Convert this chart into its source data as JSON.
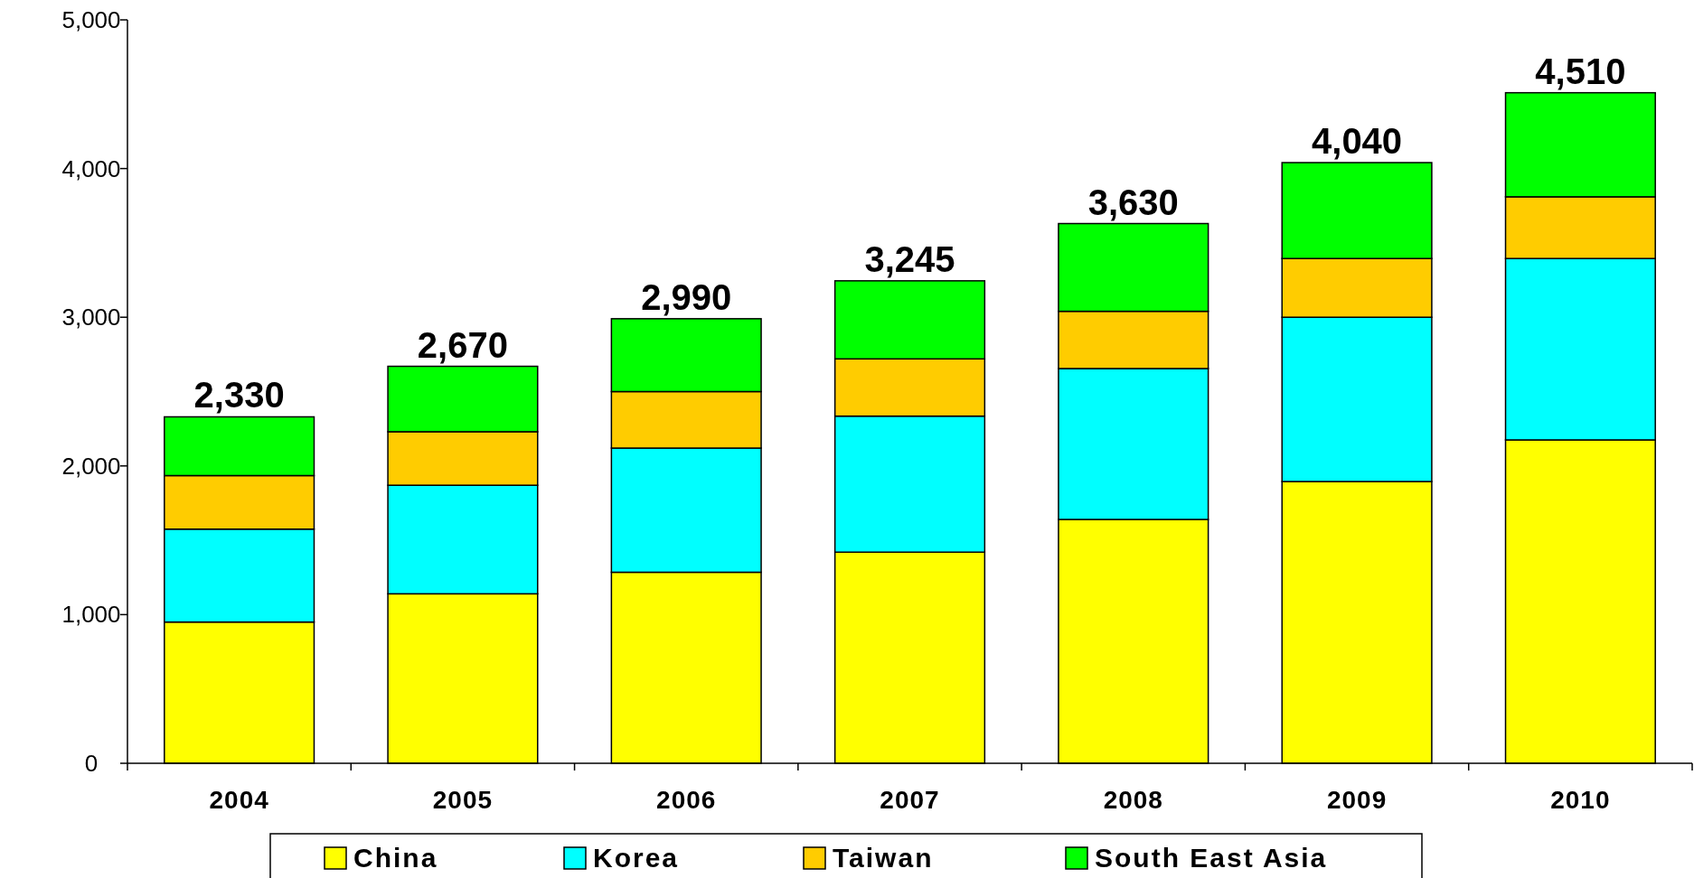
{
  "chart_data": {
    "type": "bar",
    "stacked": true,
    "categories": [
      "2004",
      "2005",
      "2006",
      "2007",
      "2008",
      "2009",
      "2010"
    ],
    "series": [
      {
        "name": "China",
        "color": "#ffff00",
        "values": [
          950,
          1140,
          1285,
          1420,
          1640,
          1895,
          2175
        ]
      },
      {
        "name": "Korea",
        "color": "#00ffff",
        "values": [
          625,
          730,
          835,
          915,
          1015,
          1105,
          1220
        ]
      },
      {
        "name": "Taiwan",
        "color": "#ffcc00",
        "values": [
          360,
          360,
          380,
          385,
          385,
          395,
          415
        ]
      },
      {
        "name": "South East Asia",
        "color": "#00ff00",
        "values": [
          395,
          440,
          490,
          525,
          590,
          645,
          700
        ]
      }
    ],
    "totals": [
      "2,330",
      "2,670",
      "2,990",
      "3,245",
      "3,630",
      "4,040",
      "4,510"
    ],
    "ylim": [
      0,
      5000
    ],
    "yticks": [
      {
        "value": 0,
        "label": "0"
      },
      {
        "value": 1000,
        "label": "1,000"
      },
      {
        "value": 2000,
        "label": "2,000"
      },
      {
        "value": 3000,
        "label": "3,000"
      },
      {
        "value": 4000,
        "label": "4,000"
      },
      {
        "value": 5000,
        "label": "5,000"
      }
    ],
    "grid": false,
    "legend": "bottom"
  }
}
